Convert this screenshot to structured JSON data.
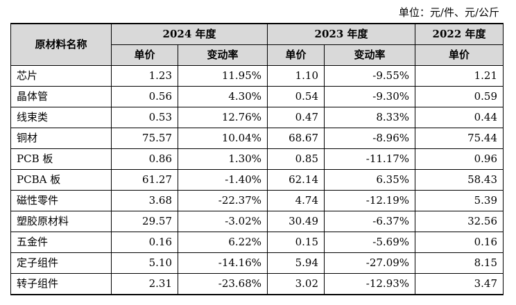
{
  "unit_note": "单位：元/件、元/公斤",
  "table": {
    "header": {
      "name_col": "原材料名称",
      "years": [
        "2024 年度",
        "2023 年度",
        "2022 年度"
      ],
      "price_label": "单价",
      "change_label": "变动率"
    },
    "rows": [
      {
        "name": "芯片",
        "p2024": "1.23",
        "c2024": "11.95%",
        "p2023": "1.10",
        "c2023": "-9.55%",
        "p2022": "1.21"
      },
      {
        "name": "晶体管",
        "p2024": "0.56",
        "c2024": "4.30%",
        "p2023": "0.54",
        "c2023": "-9.30%",
        "p2022": "0.59"
      },
      {
        "name": "线束类",
        "p2024": "0.53",
        "c2024": "12.76%",
        "p2023": "0.47",
        "c2023": "8.33%",
        "p2022": "0.44"
      },
      {
        "name": "铜材",
        "p2024": "75.57",
        "c2024": "10.04%",
        "p2023": "68.67",
        "c2023": "-8.96%",
        "p2022": "75.44"
      },
      {
        "name": "PCB 板",
        "p2024": "0.86",
        "c2024": "1.30%",
        "p2023": "0.85",
        "c2023": "-11.17%",
        "p2022": "0.96"
      },
      {
        "name": "PCBA 板",
        "p2024": "61.27",
        "c2024": "-1.40%",
        "p2023": "62.14",
        "c2023": "6.35%",
        "p2022": "58.43"
      },
      {
        "name": "磁性零件",
        "p2024": "3.68",
        "c2024": "-22.37%",
        "p2023": "4.74",
        "c2023": "-12.19%",
        "p2022": "5.39"
      },
      {
        "name": "塑胶原材料",
        "p2024": "29.57",
        "c2024": "-3.02%",
        "p2023": "30.49",
        "c2023": "-6.37%",
        "p2022": "32.56"
      },
      {
        "name": "五金件",
        "p2024": "0.16",
        "c2024": "6.22%",
        "p2023": "0.15",
        "c2023": "-5.69%",
        "p2022": "0.16"
      },
      {
        "name": "定子组件",
        "p2024": "5.10",
        "c2024": "-14.16%",
        "p2023": "5.94",
        "c2023": "-27.09%",
        "p2022": "8.15"
      },
      {
        "name": "转子组件",
        "p2024": "2.31",
        "c2024": "-23.68%",
        "p2023": "3.02",
        "c2023": "-12.93%",
        "p2022": "3.47"
      }
    ]
  }
}
